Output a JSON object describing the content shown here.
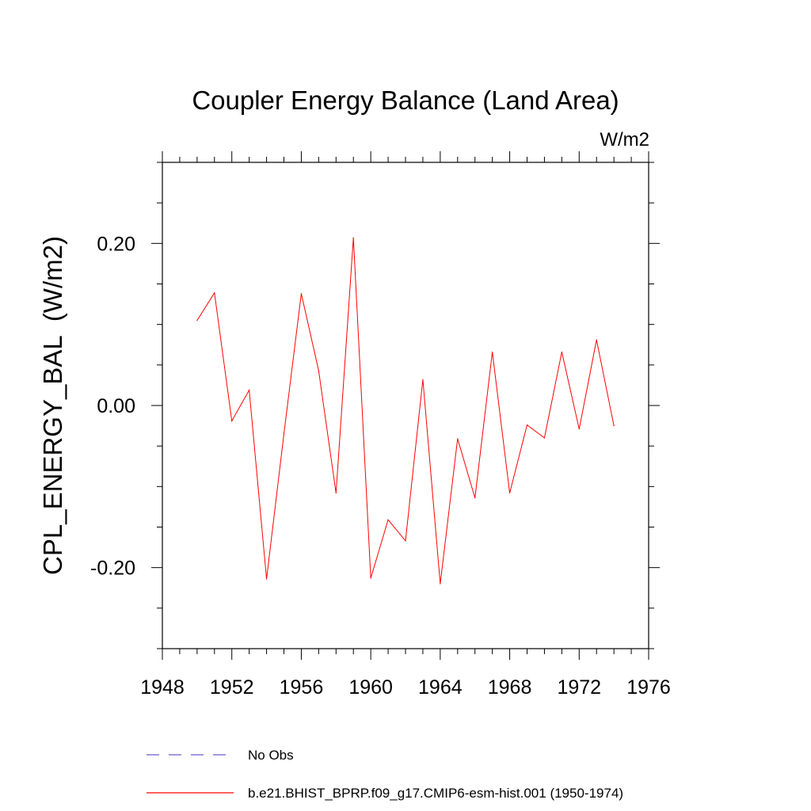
{
  "chart_data": {
    "type": "line",
    "title": "Coupler Energy Balance (Land Area)",
    "units": "W/m2",
    "ylabel": "CPL_ENERGY_BAL  (W/m2)",
    "xlabel": "",
    "xlim": [
      1948,
      1976
    ],
    "ylim": [
      -0.3,
      0.3
    ],
    "x_ticks": [
      1948,
      1952,
      1956,
      1960,
      1964,
      1968,
      1972,
      1976
    ],
    "x_tick_labels": [
      "1948",
      "1952",
      "1956",
      "1960",
      "1964",
      "1968",
      "1972",
      "1976"
    ],
    "y_ticks": [
      -0.2,
      0.0,
      0.2
    ],
    "y_tick_labels": [
      "-0.20",
      "0.00",
      "0.20"
    ],
    "grid": false,
    "legend_position": "bottom",
    "series": [
      {
        "name": "b.e21.BHIST_BPRP.f09_g17.CMIP6-esm-hist.001 (1950-1974)",
        "color": "#ff0000",
        "style": "solid",
        "x": [
          1950,
          1951,
          1952,
          1953,
          1954,
          1955,
          1956,
          1957,
          1958,
          1959,
          1960,
          1961,
          1962,
          1963,
          1964,
          1965,
          1966,
          1967,
          1968,
          1969,
          1970,
          1971,
          1972,
          1973,
          1974
        ],
        "values": [
          0.105,
          0.139,
          -0.019,
          0.019,
          -0.214,
          -0.035,
          0.138,
          0.043,
          -0.108,
          0.207,
          -0.213,
          -0.141,
          -0.167,
          0.032,
          -0.22,
          -0.041,
          -0.114,
          0.066,
          -0.108,
          -0.024,
          -0.04,
          0.066,
          -0.029,
          0.081,
          -0.025
        ]
      }
    ],
    "legend": [
      {
        "label": "No Obs",
        "color": "#6a5acd",
        "style": "dashed"
      },
      {
        "label": "b.e21.BHIST_BPRP.f09_g17.CMIP6-esm-hist.001 (1950-1974)",
        "color": "#ff0000",
        "style": "solid"
      }
    ]
  }
}
